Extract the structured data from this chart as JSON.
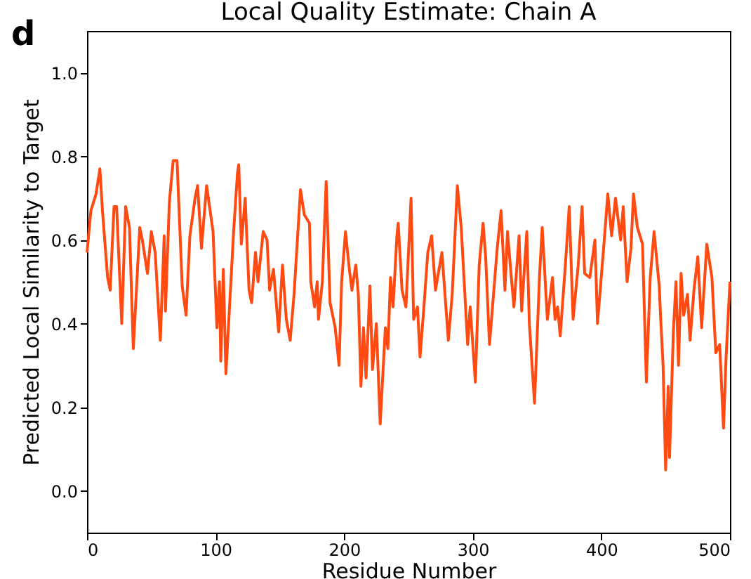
{
  "chart_data": {
    "type": "line",
    "title": "Local Quality Estimate: Chain A",
    "xlabel": "Residue Number",
    "ylabel": "Predicted Local Similarity to Target",
    "annotations": [
      "d"
    ],
    "xlim": [
      0,
      500
    ],
    "xticks": [
      0,
      100,
      200,
      300,
      400,
      500
    ],
    "ylim": [
      -0.1,
      1.1
    ],
    "yticks": [
      {
        "value": 0,
        "label": "0.0"
      },
      0.2,
      0.4,
      0.6,
      0.8,
      {
        "value": 1,
        "label": "1.0"
      }
    ],
    "grid": false,
    "legend": false,
    "marker": "none",
    "line_style": "solid",
    "x": [
      0,
      3,
      7,
      10,
      12,
      16,
      18,
      21,
      23,
      27,
      30,
      33,
      36,
      41,
      43,
      47,
      50,
      53,
      57,
      60,
      61,
      64,
      67,
      70,
      74,
      77,
      80,
      84,
      86,
      89,
      93,
      98,
      101,
      103,
      104,
      106,
      108,
      114,
      117,
      118,
      120,
      123,
      126,
      128,
      131,
      133,
      137,
      140,
      142,
      145,
      149,
      152,
      155,
      158,
      161,
      166,
      169,
      173,
      174,
      177,
      179,
      180,
      183,
      186,
      189,
      193,
      196,
      198,
      201,
      204,
      206,
      209,
      211,
      213,
      215,
      217,
      220,
      222,
      225,
      228,
      232,
      234,
      236,
      238,
      241,
      242,
      245,
      248,
      252,
      254,
      257,
      259,
      262,
      265,
      268,
      271,
      276,
      281,
      284,
      288,
      291,
      296,
      298,
      302,
      305,
      308,
      310,
      313,
      319,
      322,
      325,
      327,
      330,
      332,
      336,
      338,
      342,
      344,
      348,
      352,
      354,
      358,
      362,
      364,
      366,
      368,
      372,
      375,
      378,
      382,
      385,
      387,
      391,
      395,
      397,
      402,
      405,
      408,
      411,
      415,
      417,
      420,
      423,
      425,
      428,
      432,
      435,
      438,
      441,
      445,
      446,
      448,
      450,
      452,
      453,
      456,
      458,
      460,
      462,
      464,
      467,
      469,
      472,
      475,
      478,
      482,
      486,
      489,
      492,
      495,
      497,
      500
    ],
    "series": [
      {
        "color": "#ff4a12",
        "values": [
          0.57,
          0.67,
          0.71,
          0.77,
          0.67,
          0.51,
          0.48,
          0.68,
          0.68,
          0.4,
          0.68,
          0.63,
          0.34,
          0.63,
          0.6,
          0.52,
          0.62,
          0.57,
          0.36,
          0.61,
          0.43,
          0.69,
          0.79,
          0.79,
          0.49,
          0.42,
          0.61,
          0.7,
          0.73,
          0.58,
          0.73,
          0.62,
          0.39,
          0.5,
          0.31,
          0.53,
          0.28,
          0.62,
          0.76,
          0.78,
          0.59,
          0.7,
          0.48,
          0.45,
          0.57,
          0.5,
          0.62,
          0.6,
          0.48,
          0.53,
          0.38,
          0.54,
          0.41,
          0.36,
          0.47,
          0.72,
          0.66,
          0.64,
          0.5,
          0.44,
          0.5,
          0.41,
          0.5,
          0.74,
          0.45,
          0.39,
          0.3,
          0.5,
          0.62,
          0.53,
          0.48,
          0.54,
          0.47,
          0.25,
          0.39,
          0.27,
          0.49,
          0.29,
          0.4,
          0.16,
          0.39,
          0.34,
          0.51,
          0.44,
          0.61,
          0.64,
          0.48,
          0.44,
          0.7,
          0.41,
          0.44,
          0.32,
          0.44,
          0.57,
          0.61,
          0.48,
          0.57,
          0.36,
          0.47,
          0.73,
          0.63,
          0.35,
          0.44,
          0.26,
          0.54,
          0.64,
          0.56,
          0.35,
          0.58,
          0.67,
          0.48,
          0.62,
          0.51,
          0.44,
          0.61,
          0.43,
          0.62,
          0.4,
          0.21,
          0.52,
          0.63,
          0.41,
          0.51,
          0.41,
          0.44,
          0.37,
          0.54,
          0.68,
          0.41,
          0.54,
          0.68,
          0.52,
          0.51,
          0.6,
          0.4,
          0.59,
          0.71,
          0.61,
          0.7,
          0.6,
          0.68,
          0.5,
          0.58,
          0.71,
          0.63,
          0.59,
          0.26,
          0.51,
          0.62,
          0.49,
          0.42,
          0.3,
          0.05,
          0.25,
          0.08,
          0.38,
          0.5,
          0.3,
          0.52,
          0.42,
          0.47,
          0.36,
          0.48,
          0.56,
          0.39,
          0.59,
          0.51,
          0.33,
          0.35,
          0.15,
          0.32,
          0.5
        ]
      }
    ]
  }
}
